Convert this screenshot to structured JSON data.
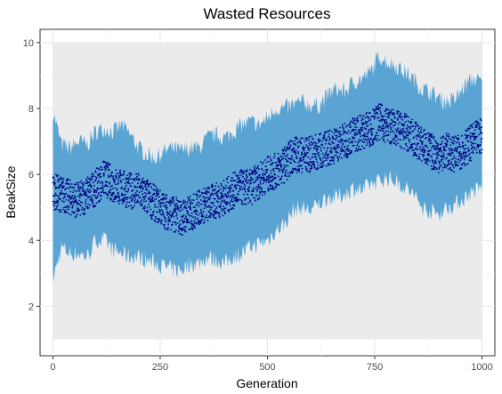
{
  "chart_data": {
    "type": "scatter",
    "title": "Wasted Resources",
    "xlabel": "Generation",
    "ylabel": "BeakSize",
    "xlim": [
      -30,
      1030
    ],
    "ylim": [
      0.5,
      10.4
    ],
    "x_ticks": [
      0,
      250,
      500,
      750,
      1000
    ],
    "y_ticks": [
      2,
      4,
      6,
      8,
      10
    ],
    "grid": true,
    "legend": "none",
    "series": [
      {
        "kind": "mean-points",
        "color": "#00007f",
        "x": [
          0,
          20,
          40,
          60,
          80,
          100,
          120,
          140,
          160,
          180,
          200,
          220,
          240,
          260,
          280,
          300,
          320,
          340,
          360,
          380,
          400,
          420,
          440,
          460,
          480,
          500,
          520,
          540,
          560,
          580,
          600,
          620,
          640,
          660,
          680,
          700,
          720,
          740,
          760,
          780,
          800,
          820,
          840,
          860,
          880,
          900,
          920,
          940,
          960,
          980,
          1000
        ],
        "y": [
          5.5,
          5.4,
          5.3,
          5.2,
          5.4,
          5.6,
          5.9,
          5.7,
          5.6,
          5.5,
          5.5,
          5.3,
          5.1,
          4.9,
          4.8,
          4.7,
          4.8,
          5.0,
          5.1,
          5.2,
          5.3,
          5.5,
          5.6,
          5.6,
          5.8,
          6.0,
          6.1,
          6.3,
          6.6,
          6.6,
          6.6,
          6.7,
          6.8,
          6.9,
          7.0,
          7.2,
          7.3,
          7.4,
          7.6,
          7.5,
          7.4,
          7.3,
          7.1,
          6.9,
          6.7,
          6.6,
          6.7,
          6.6,
          6.8,
          7.0,
          7.2
        ]
      },
      {
        "kind": "upper-envelope",
        "color": "#5aa4d4",
        "x": [
          0,
          20,
          40,
          60,
          80,
          100,
          120,
          140,
          160,
          180,
          200,
          220,
          240,
          260,
          280,
          300,
          320,
          340,
          360,
          380,
          400,
          420,
          440,
          460,
          480,
          500,
          520,
          540,
          560,
          580,
          600,
          620,
          640,
          660,
          680,
          700,
          720,
          740,
          760,
          780,
          800,
          820,
          840,
          860,
          880,
          900,
          920,
          940,
          960,
          980,
          1000
        ],
        "y": [
          7.9,
          6.9,
          6.8,
          7.0,
          6.9,
          7.3,
          7.4,
          7.3,
          7.5,
          7.2,
          6.8,
          6.6,
          6.5,
          6.7,
          6.8,
          6.7,
          6.8,
          6.8,
          7.1,
          7.2,
          7.1,
          7.3,
          7.5,
          7.6,
          7.5,
          7.7,
          8.0,
          8.0,
          8.1,
          8.2,
          8.1,
          8.1,
          8.4,
          8.6,
          8.5,
          8.8,
          8.9,
          9.1,
          9.6,
          9.4,
          9.3,
          9.1,
          8.9,
          8.6,
          8.5,
          8.3,
          8.2,
          8.3,
          8.7,
          8.9,
          8.8
        ]
      },
      {
        "kind": "lower-envelope",
        "color": "#5aa4d4",
        "x": [
          0,
          20,
          40,
          60,
          80,
          100,
          120,
          140,
          160,
          180,
          200,
          220,
          240,
          260,
          280,
          300,
          320,
          340,
          360,
          380,
          400,
          420,
          440,
          460,
          480,
          500,
          520,
          540,
          560,
          580,
          600,
          620,
          640,
          660,
          680,
          700,
          720,
          740,
          760,
          780,
          800,
          820,
          840,
          860,
          880,
          900,
          920,
          940,
          960,
          980,
          1000
        ],
        "y": [
          2.8,
          3.8,
          3.6,
          3.6,
          3.5,
          4.0,
          4.0,
          3.7,
          3.6,
          3.5,
          3.5,
          3.4,
          3.3,
          3.2,
          3.1,
          3.1,
          3.3,
          3.3,
          3.5,
          3.4,
          3.3,
          3.5,
          3.6,
          3.8,
          3.9,
          4.0,
          4.3,
          4.5,
          4.9,
          5.0,
          4.9,
          5.1,
          5.3,
          5.3,
          5.4,
          5.6,
          5.5,
          5.7,
          5.8,
          5.9,
          5.8,
          5.6,
          5.4,
          5.0,
          4.9,
          4.8,
          5.0,
          5.1,
          5.3,
          5.5,
          5.6
        ]
      }
    ]
  }
}
